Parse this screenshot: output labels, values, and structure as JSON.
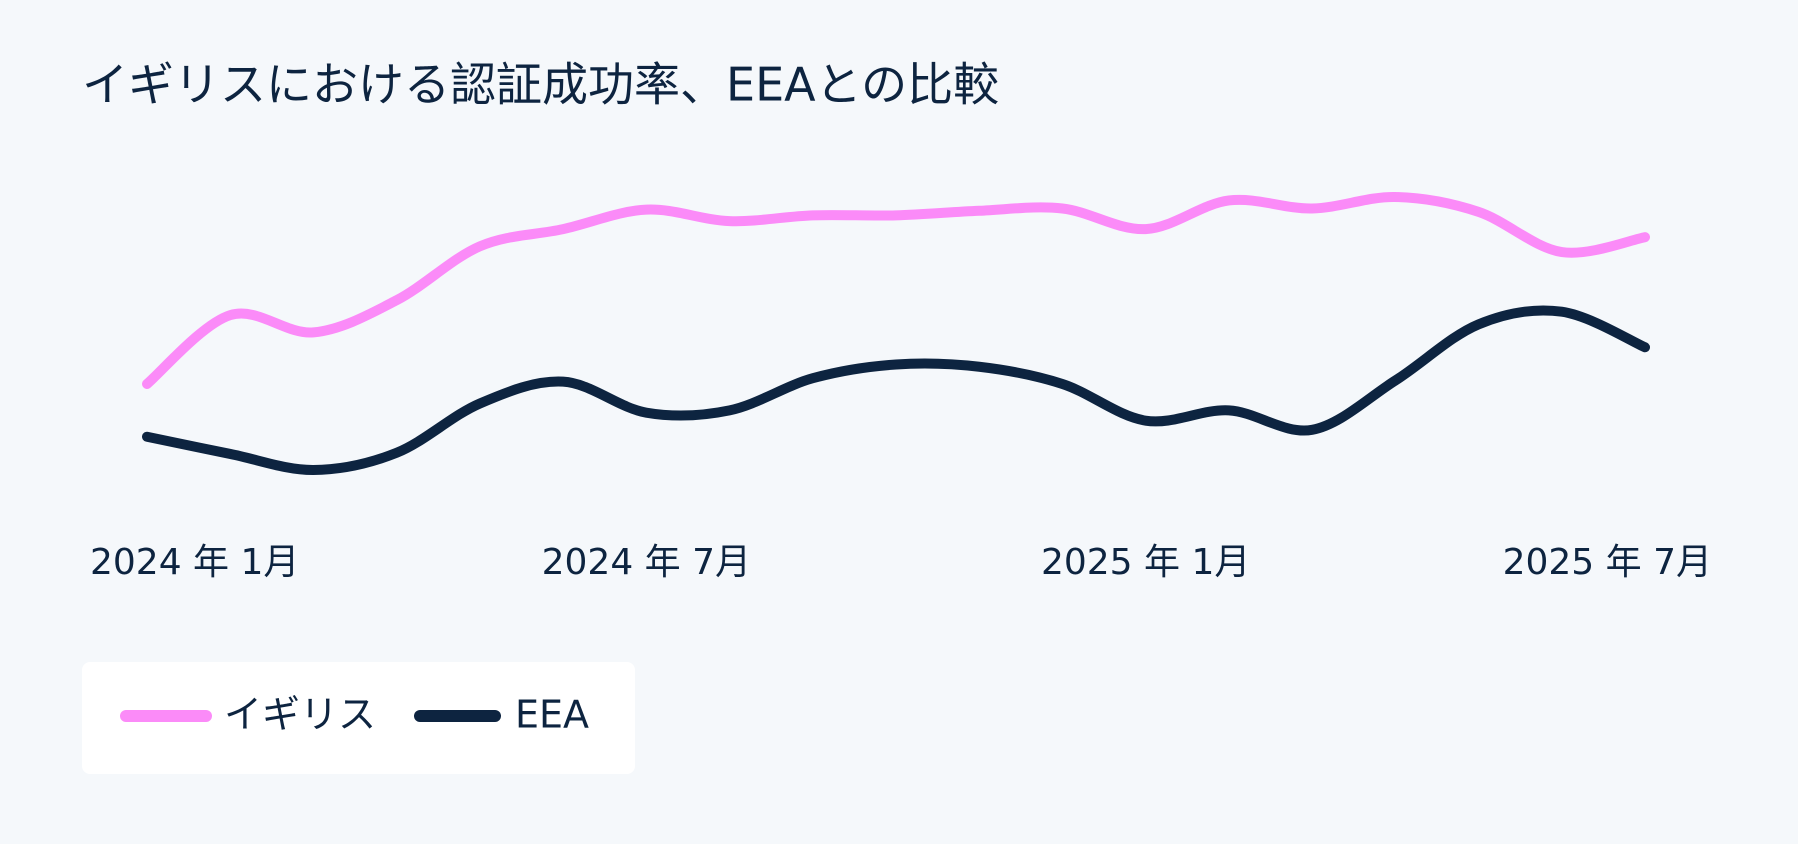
{
  "chart_data": {
    "type": "line",
    "title": "イギリスにおける認証成功率、EEAとの比較",
    "categories": [
      "2024 年 1月",
      null,
      null,
      null,
      null,
      null,
      "2024 年 7月",
      null,
      null,
      null,
      null,
      null,
      "2025 年 1月",
      null,
      null,
      null,
      null,
      null,
      "2025 年 7月"
    ],
    "series": [
      {
        "name": "イギリス",
        "color": "#fb8bf8",
        "values": [
          11.5,
          17.5,
          16,
          18.8,
          23.5,
          25,
          26.7,
          25.7,
          26.2,
          26.2,
          26.6,
          26.8,
          25,
          27.5,
          26.8,
          27.8,
          26.5,
          23,
          24.3
        ]
      },
      {
        "name": "EEA",
        "color": "#0d2440",
        "values": [
          6.9,
          5.4,
          4,
          5.5,
          9.8,
          11.7,
          9,
          9.2,
          12,
          13.2,
          13,
          11.5,
          8.3,
          9.2,
          7.5,
          11.8,
          16.7,
          17.8,
          14.7
        ]
      }
    ],
    "grid": false,
    "legend": "bottom-left"
  }
}
